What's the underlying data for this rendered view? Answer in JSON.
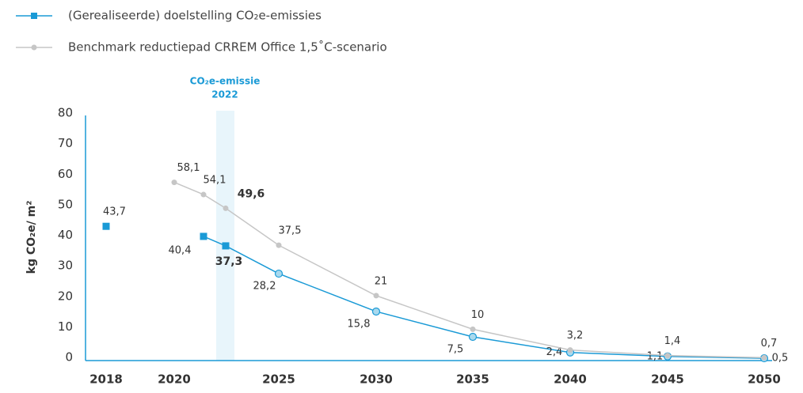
{
  "chart_data": {
    "type": "line",
    "y_label": "kg CO₂e/ m²",
    "annotation": [
      "CO₂e-emissie",
      "2022"
    ],
    "categories": [
      "2018",
      "2020",
      null,
      null,
      "2025",
      "2030",
      "2035",
      "2040",
      "2045",
      "2050"
    ],
    "series": [
      {
        "name": "(Gerealiseerde) doelstelling CO₂e-emissies",
        "color": "#1a9ad6",
        "values": [
          43.7,
          null,
          40.4,
          37.3,
          28.2,
          15.8,
          7.5,
          2.4,
          1.1,
          0.5
        ],
        "value_labels": [
          "43,7",
          null,
          "40,4",
          "37,3",
          "28,2",
          "15,8",
          "7,5",
          "2,4",
          "1,1",
          "0,5"
        ]
      },
      {
        "name": "Benchmark reductiepad CRREM Office 1,5˚C-scenario",
        "color": "#c6c6c6",
        "values": [
          null,
          58.1,
          54.1,
          49.6,
          37.5,
          21,
          10,
          3.2,
          1.4,
          0.7
        ],
        "value_labels": [
          null,
          "58,1",
          "54,1",
          "49,6",
          "37,5",
          "21",
          "10",
          "3,2",
          "1,4",
          "0,7"
        ]
      }
    ],
    "ylim": [
      0,
      80
    ],
    "yticks": [
      0,
      10,
      20,
      30,
      40,
      50,
      60,
      70,
      80
    ]
  }
}
